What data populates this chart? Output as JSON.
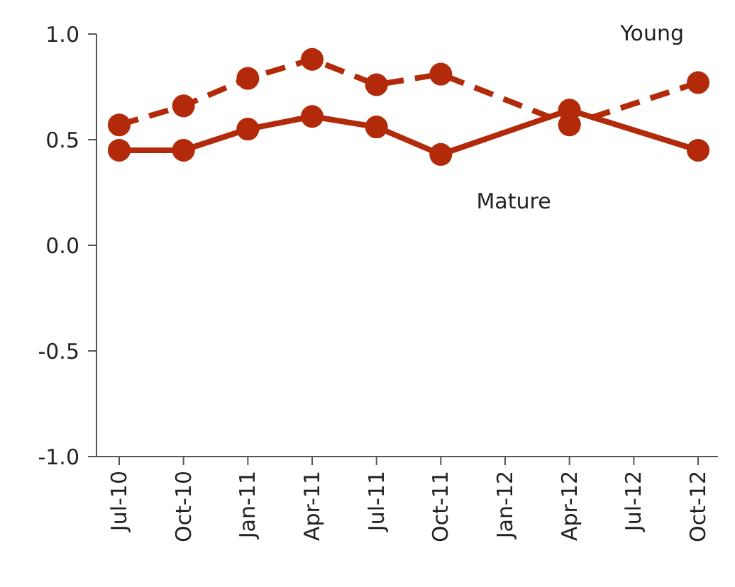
{
  "chart_data": {
    "type": "line",
    "categories": [
      "Jul-10",
      "Oct-10",
      "Jan-11",
      "Apr-11",
      "Jul-11",
      "Oct-11",
      "Jan-12",
      "Apr-12",
      "Jul-12",
      "Oct-12"
    ],
    "series": [
      {
        "name": "Young",
        "color": "#b22a0a",
        "line_style": "dashed",
        "values": [
          0.57,
          0.66,
          0.79,
          0.88,
          0.76,
          0.81,
          null,
          0.57,
          null,
          0.77
        ]
      },
      {
        "name": "Mature",
        "color": "#b22a0a",
        "line_style": "solid",
        "values": [
          0.45,
          0.45,
          0.55,
          0.61,
          0.56,
          0.43,
          null,
          0.64,
          null,
          0.45
        ]
      }
    ],
    "ylim": [
      -1,
      1
    ],
    "yticks": [
      {
        "value": -1,
        "label": "-1.0"
      },
      {
        "value": -0.5,
        "label": "-0.5"
      },
      {
        "value": 0,
        "label": "0.0"
      },
      {
        "value": 0.5,
        "label": "0.5"
      },
      {
        "value": 1,
        "label": "1.0"
      }
    ],
    "marker": "circle"
  }
}
